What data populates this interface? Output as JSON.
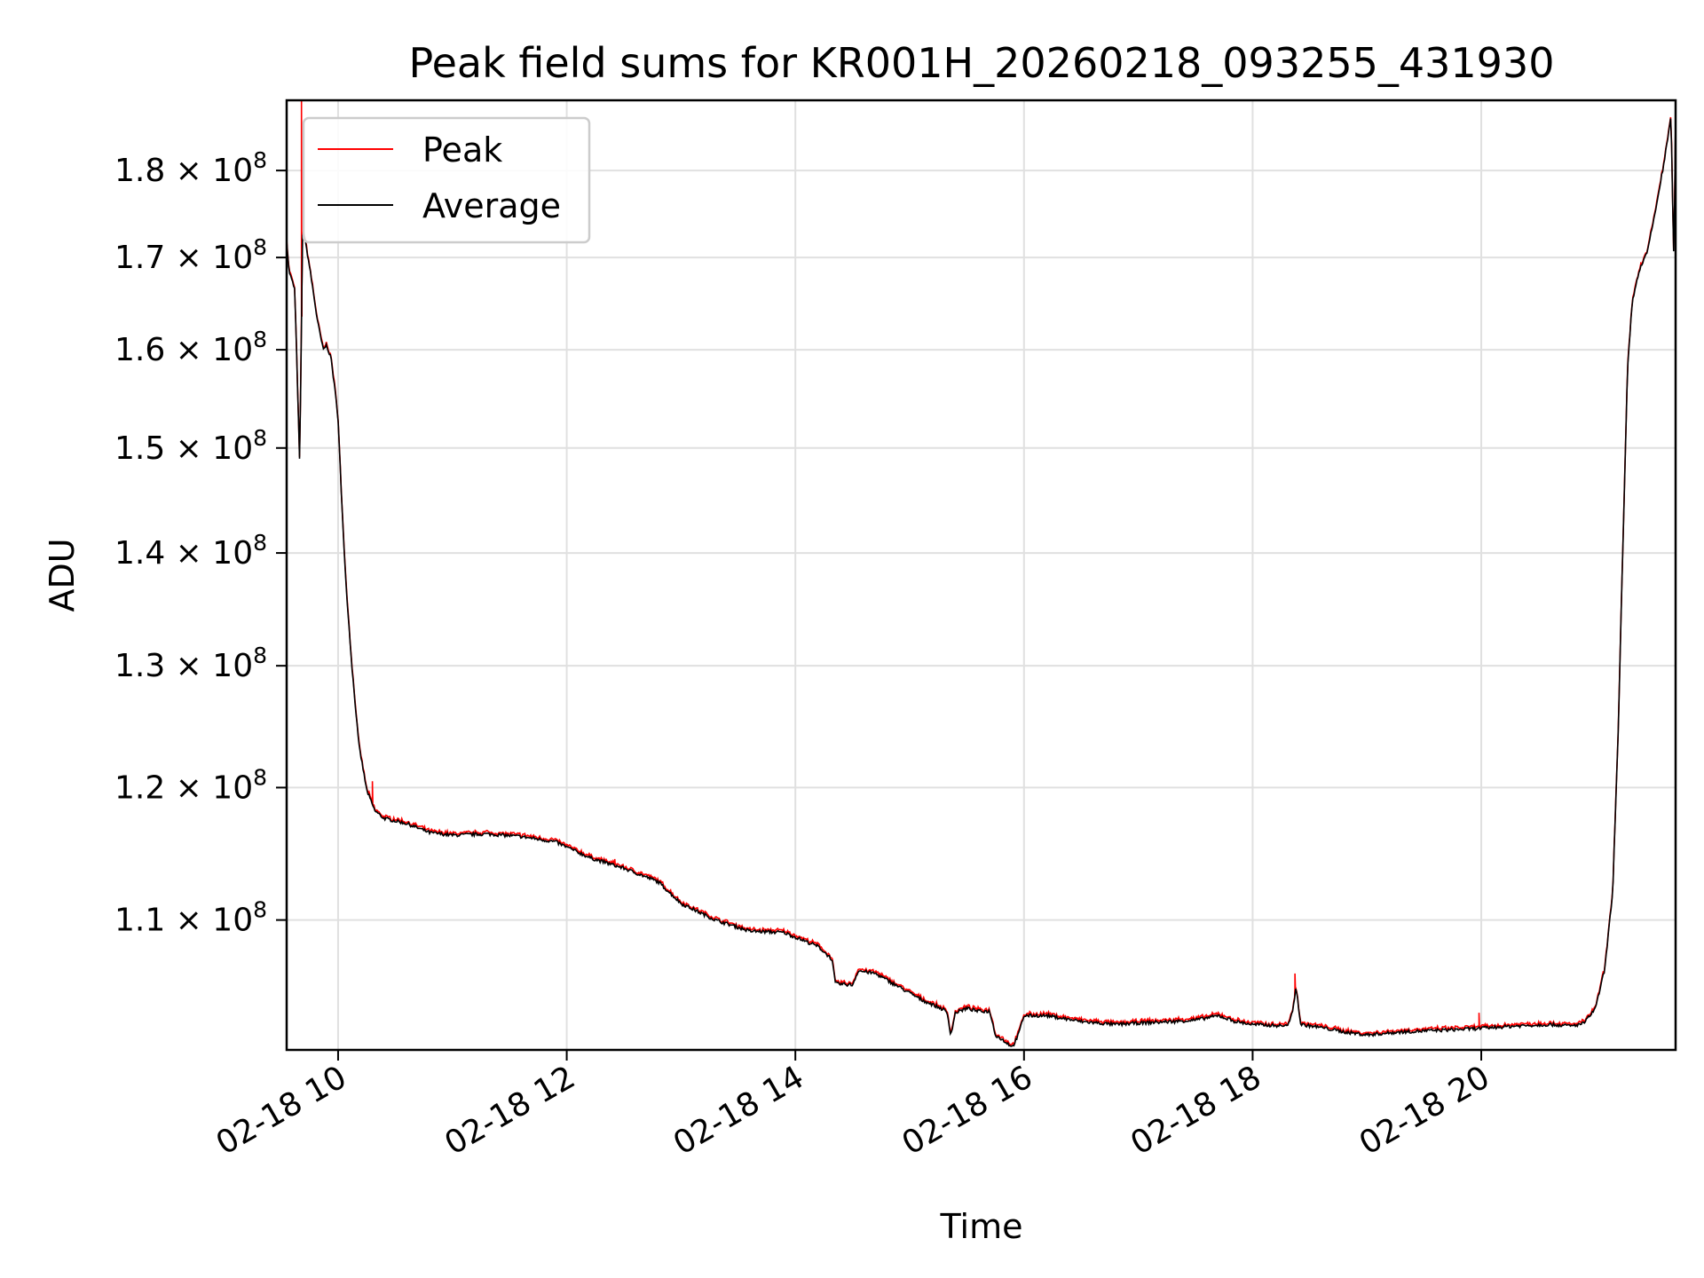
{
  "chart_data": {
    "type": "line",
    "title": "Peak field sums for KR001H_20260218_093255_431930",
    "xlabel": "Time",
    "ylabel": "ADU",
    "yscale": "log",
    "grid": true,
    "legend_position": "top-left",
    "xlim_hours": [
      9.55,
      21.7
    ],
    "ylim": [
      101000000,
      188500000
    ],
    "x_ticks": [
      {
        "hour": 10,
        "label": "02-18 10"
      },
      {
        "hour": 12,
        "label": "02-18 12"
      },
      {
        "hour": 14,
        "label": "02-18 14"
      },
      {
        "hour": 16,
        "label": "02-18 16"
      },
      {
        "hour": 18,
        "label": "02-18 18"
      },
      {
        "hour": 20,
        "label": "02-18 20"
      }
    ],
    "y_ticks": [
      {
        "value": 110000000,
        "mantissa": "1.1",
        "exponent": "8"
      },
      {
        "value": 120000000,
        "mantissa": "1.2",
        "exponent": "8"
      },
      {
        "value": 130000000,
        "mantissa": "1.3",
        "exponent": "8"
      },
      {
        "value": 140000000,
        "mantissa": "1.4",
        "exponent": "8"
      },
      {
        "value": 150000000,
        "mantissa": "1.5",
        "exponent": "8"
      },
      {
        "value": 160000000,
        "mantissa": "1.6",
        "exponent": "8"
      },
      {
        "value": 170000000,
        "mantissa": "1.7",
        "exponent": "8"
      },
      {
        "value": 180000000,
        "mantissa": "1.8",
        "exponent": "8"
      }
    ],
    "series": [
      {
        "name": "Peak",
        "color": "#ff0000",
        "spikes": [
          {
            "hour": 9.68,
            "value": 188500000
          },
          {
            "hour": 10.3,
            "value": 120500000
          },
          {
            "hour": 12.42,
            "value": 114500000
          },
          {
            "hour": 18.37,
            "value": 106200000
          },
          {
            "hour": 19.98,
            "value": 103500000
          }
        ]
      },
      {
        "name": "Average",
        "color": "#000000",
        "points": [
          [
            9.55,
            172000000
          ],
          [
            9.57,
            168500000
          ],
          [
            9.62,
            166500000
          ],
          [
            9.665,
            148000000
          ],
          [
            9.69,
            173500000
          ],
          [
            9.75,
            169000000
          ],
          [
            9.82,
            163000000
          ],
          [
            9.87,
            160000000
          ],
          [
            9.9,
            160500000
          ],
          [
            9.94,
            159000000
          ],
          [
            9.97,
            156000000
          ],
          [
            10.0,
            153000000
          ],
          [
            10.03,
            145000000
          ],
          [
            10.07,
            137000000
          ],
          [
            10.12,
            130000000
          ],
          [
            10.18,
            123500000
          ],
          [
            10.25,
            119800000
          ],
          [
            10.32,
            118200000
          ],
          [
            10.4,
            117600000
          ],
          [
            10.6,
            117200000
          ],
          [
            10.8,
            116500000
          ],
          [
            11.0,
            116300000
          ],
          [
            11.3,
            116400000
          ],
          [
            11.6,
            116200000
          ],
          [
            11.9,
            115800000
          ],
          [
            12.2,
            114600000
          ],
          [
            12.5,
            113800000
          ],
          [
            12.8,
            112800000
          ],
          [
            13.0,
            111200000
          ],
          [
            13.3,
            110000000
          ],
          [
            13.6,
            109200000
          ],
          [
            13.9,
            109100000
          ],
          [
            14.2,
            108100000
          ],
          [
            14.32,
            107200000
          ],
          [
            14.35,
            105500000
          ],
          [
            14.5,
            105400000
          ],
          [
            14.55,
            106400000
          ],
          [
            14.7,
            106200000
          ],
          [
            14.9,
            105300000
          ],
          [
            15.1,
            104400000
          ],
          [
            15.3,
            103700000
          ],
          [
            15.33,
            103400000
          ],
          [
            15.36,
            102000000
          ],
          [
            15.4,
            103500000
          ],
          [
            15.5,
            103800000
          ],
          [
            15.6,
            103600000
          ],
          [
            15.7,
            103600000
          ],
          [
            15.75,
            102000000
          ],
          [
            15.9,
            101200000
          ],
          [
            15.95,
            102000000
          ],
          [
            16.0,
            103300000
          ],
          [
            16.2,
            103300000
          ],
          [
            16.5,
            102900000
          ],
          [
            16.8,
            102700000
          ],
          [
            17.0,
            102800000
          ],
          [
            17.3,
            102900000
          ],
          [
            17.5,
            103000000
          ],
          [
            17.7,
            103300000
          ],
          [
            17.85,
            102900000
          ],
          [
            18.0,
            102700000
          ],
          [
            18.3,
            102600000
          ],
          [
            18.35,
            103500000
          ],
          [
            18.38,
            105300000
          ],
          [
            18.42,
            102700000
          ],
          [
            18.6,
            102500000
          ],
          [
            18.8,
            102200000
          ],
          [
            19.0,
            102000000
          ],
          [
            19.3,
            102200000
          ],
          [
            19.6,
            102300000
          ],
          [
            19.9,
            102400000
          ],
          [
            20.3,
            102600000
          ],
          [
            20.6,
            102700000
          ],
          [
            20.8,
            102600000
          ],
          [
            20.9,
            102800000
          ],
          [
            21.0,
            103800000
          ],
          [
            21.08,
            106500000
          ],
          [
            21.15,
            112000000
          ],
          [
            21.2,
            125000000
          ],
          [
            21.25,
            145000000
          ],
          [
            21.28,
            158000000
          ],
          [
            21.32,
            165000000
          ],
          [
            21.38,
            168500000
          ],
          [
            21.45,
            170500000
          ],
          [
            21.52,
            175000000
          ],
          [
            21.6,
            181000000
          ],
          [
            21.66,
            186500000
          ],
          [
            21.685,
            169000000
          ],
          [
            21.7,
            186000000
          ]
        ]
      }
    ]
  }
}
